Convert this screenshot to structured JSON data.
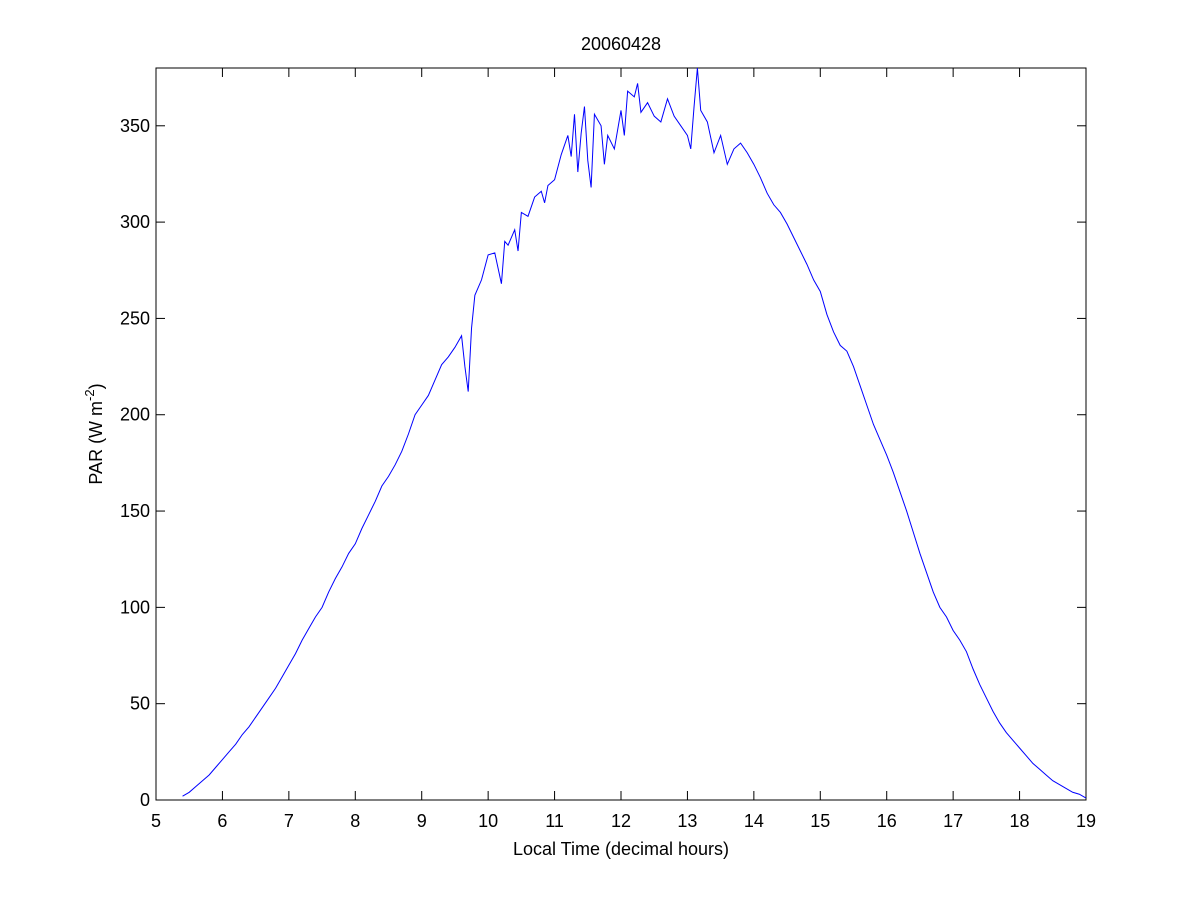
{
  "chart_data": {
    "type": "line",
    "title": "20060428",
    "xlabel": "Local Time (decimal hours)",
    "ylabel": {
      "text": "PAR (W m",
      "superscript": "-2",
      "suffix": ")"
    },
    "xlim": [
      5,
      19
    ],
    "ylim": [
      0,
      380
    ],
    "xticks": [
      5,
      6,
      7,
      8,
      9,
      10,
      11,
      12,
      13,
      14,
      15,
      16,
      17,
      18,
      19
    ],
    "yticks": [
      0,
      50,
      100,
      150,
      200,
      250,
      300,
      350
    ],
    "grid": false,
    "x": [
      5.4,
      5.5,
      5.6,
      5.7,
      5.8,
      5.9,
      6.0,
      6.1,
      6.2,
      6.3,
      6.4,
      6.5,
      6.6,
      6.7,
      6.8,
      6.9,
      7.0,
      7.1,
      7.2,
      7.3,
      7.4,
      7.5,
      7.6,
      7.7,
      7.8,
      7.9,
      8.0,
      8.1,
      8.2,
      8.3,
      8.4,
      8.5,
      8.6,
      8.7,
      8.8,
      8.9,
      9.0,
      9.1,
      9.2,
      9.3,
      9.4,
      9.5,
      9.6,
      9.65,
      9.7,
      9.75,
      9.8,
      9.9,
      10.0,
      10.1,
      10.15,
      10.2,
      10.25,
      10.3,
      10.4,
      10.45,
      10.5,
      10.6,
      10.7,
      10.8,
      10.85,
      10.9,
      11.0,
      11.1,
      11.2,
      11.25,
      11.3,
      11.35,
      11.4,
      11.45,
      11.5,
      11.55,
      11.6,
      11.7,
      11.75,
      11.8,
      11.9,
      12.0,
      12.05,
      12.1,
      12.2,
      12.25,
      12.3,
      12.4,
      12.5,
      12.6,
      12.7,
      12.8,
      12.9,
      13.0,
      13.05,
      13.1,
      13.15,
      13.2,
      13.3,
      13.4,
      13.5,
      13.6,
      13.7,
      13.8,
      13.9,
      14.0,
      14.1,
      14.2,
      14.3,
      14.4,
      14.5,
      14.6,
      14.7,
      14.8,
      14.9,
      15.0,
      15.1,
      15.2,
      15.3,
      15.4,
      15.5,
      15.6,
      15.7,
      15.8,
      15.9,
      16.0,
      16.1,
      16.2,
      16.3,
      16.4,
      16.5,
      16.6,
      16.7,
      16.8,
      16.9,
      17.0,
      17.1,
      17.2,
      17.3,
      17.4,
      17.5,
      17.6,
      17.7,
      17.8,
      17.9,
      18.0,
      18.1,
      18.2,
      18.3,
      18.4,
      18.5,
      18.6,
      18.7,
      18.8,
      18.9,
      19.0
    ],
    "series": [
      {
        "color": "#0000ff",
        "values": [
          2,
          4,
          7,
          10,
          13,
          17,
          21,
          25,
          29,
          34,
          38,
          43,
          48,
          53,
          58,
          64,
          70,
          76,
          83,
          89,
          95,
          100,
          108,
          115,
          121,
          128,
          133,
          141,
          148,
          155,
          163,
          168,
          174,
          181,
          190,
          200,
          205,
          210,
          218,
          226,
          230,
          235,
          241,
          225,
          212,
          245,
          262,
          270,
          283,
          284,
          276,
          268,
          290,
          288,
          296,
          285,
          305,
          303,
          313,
          316,
          310,
          319,
          322,
          335,
          345,
          334,
          356,
          326,
          346,
          360,
          332,
          318,
          356,
          350,
          330,
          345,
          338,
          358,
          345,
          368,
          365,
          372,
          357,
          362,
          355,
          352,
          364,
          355,
          350,
          345,
          338,
          360,
          380,
          358,
          352,
          336,
          345,
          330,
          338,
          341,
          336,
          330,
          323,
          315,
          309,
          305,
          299,
          292,
          285,
          278,
          270,
          264,
          252,
          243,
          236,
          233,
          225,
          215,
          205,
          195,
          187,
          179,
          170,
          160,
          150,
          139,
          128,
          118,
          108,
          100,
          95,
          88,
          83,
          77,
          68,
          60,
          53,
          46,
          40,
          35,
          31,
          27,
          23,
          19,
          16,
          13,
          10,
          8,
          6,
          4,
          3,
          1
        ]
      }
    ]
  }
}
